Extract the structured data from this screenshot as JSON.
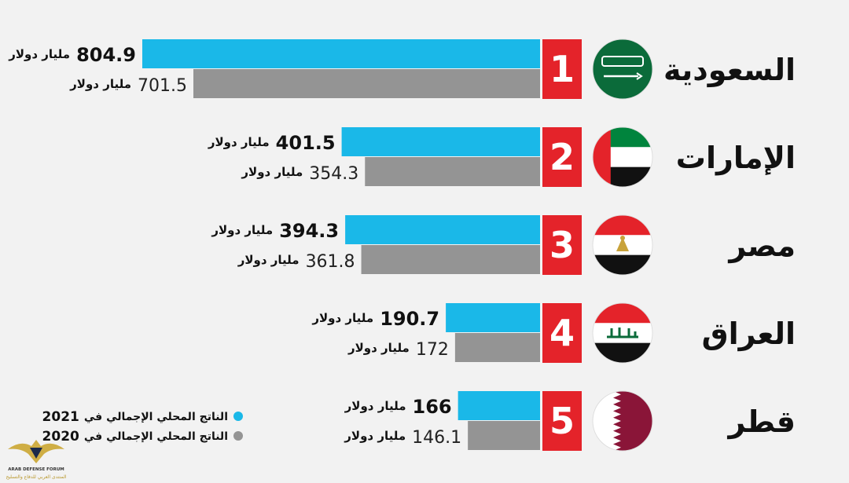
{
  "chart_data": {
    "type": "bar",
    "orientation": "horizontal",
    "unit_label": "مليار دولار",
    "categories": [
      "السعودية",
      "الإمارات",
      "مصر",
      "العراق",
      "قطر"
    ],
    "ranks": [
      "1",
      "2",
      "3",
      "4",
      "5"
    ],
    "series": [
      {
        "name": "الناتج المحلي الإجمالي في 2021",
        "color": "#1ab8e8",
        "values": [
          804.9,
          401.5,
          394.3,
          190.7,
          166
        ]
      },
      {
        "name": "الناتج المحلي الإجمالي في 2020",
        "color": "#949494",
        "values": [
          701.5,
          354.3,
          361.8,
          172,
          146.1
        ]
      }
    ],
    "value_labels": [
      [
        "804.9",
        "401.5",
        "394.3",
        "190.7",
        "166"
      ],
      [
        "701.5",
        "354.3",
        "361.8",
        "172",
        "146.1"
      ]
    ],
    "legend": {
      "position": "bottom-left",
      "items": [
        {
          "prefix": "الناتج المحلي الإجمالي في",
          "year": "2021",
          "color": "#1ab8e8"
        },
        {
          "prefix": "الناتج المحلي الإجمالي في",
          "year": "2020",
          "color": "#949494"
        }
      ]
    },
    "rank_color": "#e4232a",
    "flags": [
      "saudi-flag",
      "uae-flag",
      "egypt-flag",
      "iraq-flag",
      "qatar-flag"
    ]
  },
  "watermark": {
    "line1": "ARAB DEFENSE FORUM",
    "line2": "المنتدى العربي للدفاع والتسليح"
  }
}
